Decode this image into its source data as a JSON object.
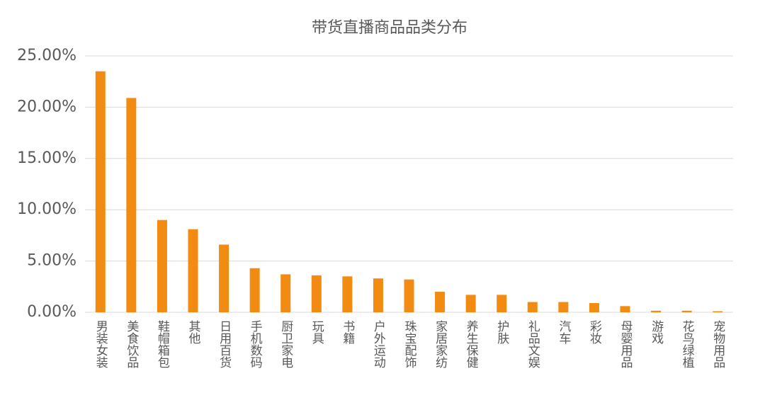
{
  "chart_data": {
    "type": "bar",
    "title": "带货直播商品品类分布",
    "categories": [
      "男装女装",
      "美食饮品",
      "鞋帽箱包",
      "其他",
      "日用百货",
      "手机数码",
      "厨卫家电",
      "玩具",
      "书籍",
      "户外运动",
      "珠宝配饰",
      "家居家纺",
      "养生保健",
      "护肤",
      "礼品文娱",
      "汽车",
      "彩妆",
      "母婴用品",
      "游戏",
      "花鸟绿植",
      "宠物用品"
    ],
    "values": [
      23.5,
      20.9,
      9.0,
      8.1,
      6.6,
      4.3,
      3.7,
      3.6,
      3.5,
      3.3,
      3.2,
      2.0,
      1.7,
      1.7,
      1.0,
      1.0,
      0.9,
      0.6,
      0.15,
      0.15,
      0.1
    ],
    "color": "#f28b12",
    "ylim": [
      0,
      25
    ],
    "yticks": [
      {
        "value": 0,
        "label": "0.00%"
      },
      {
        "value": 5,
        "label": "5.00%"
      },
      {
        "value": 10,
        "label": "10.00%"
      },
      {
        "value": 15,
        "label": "15.00%"
      },
      {
        "value": 20,
        "label": "20.00%"
      },
      {
        "value": 25,
        "label": "25.00%"
      }
    ],
    "grid": true
  }
}
